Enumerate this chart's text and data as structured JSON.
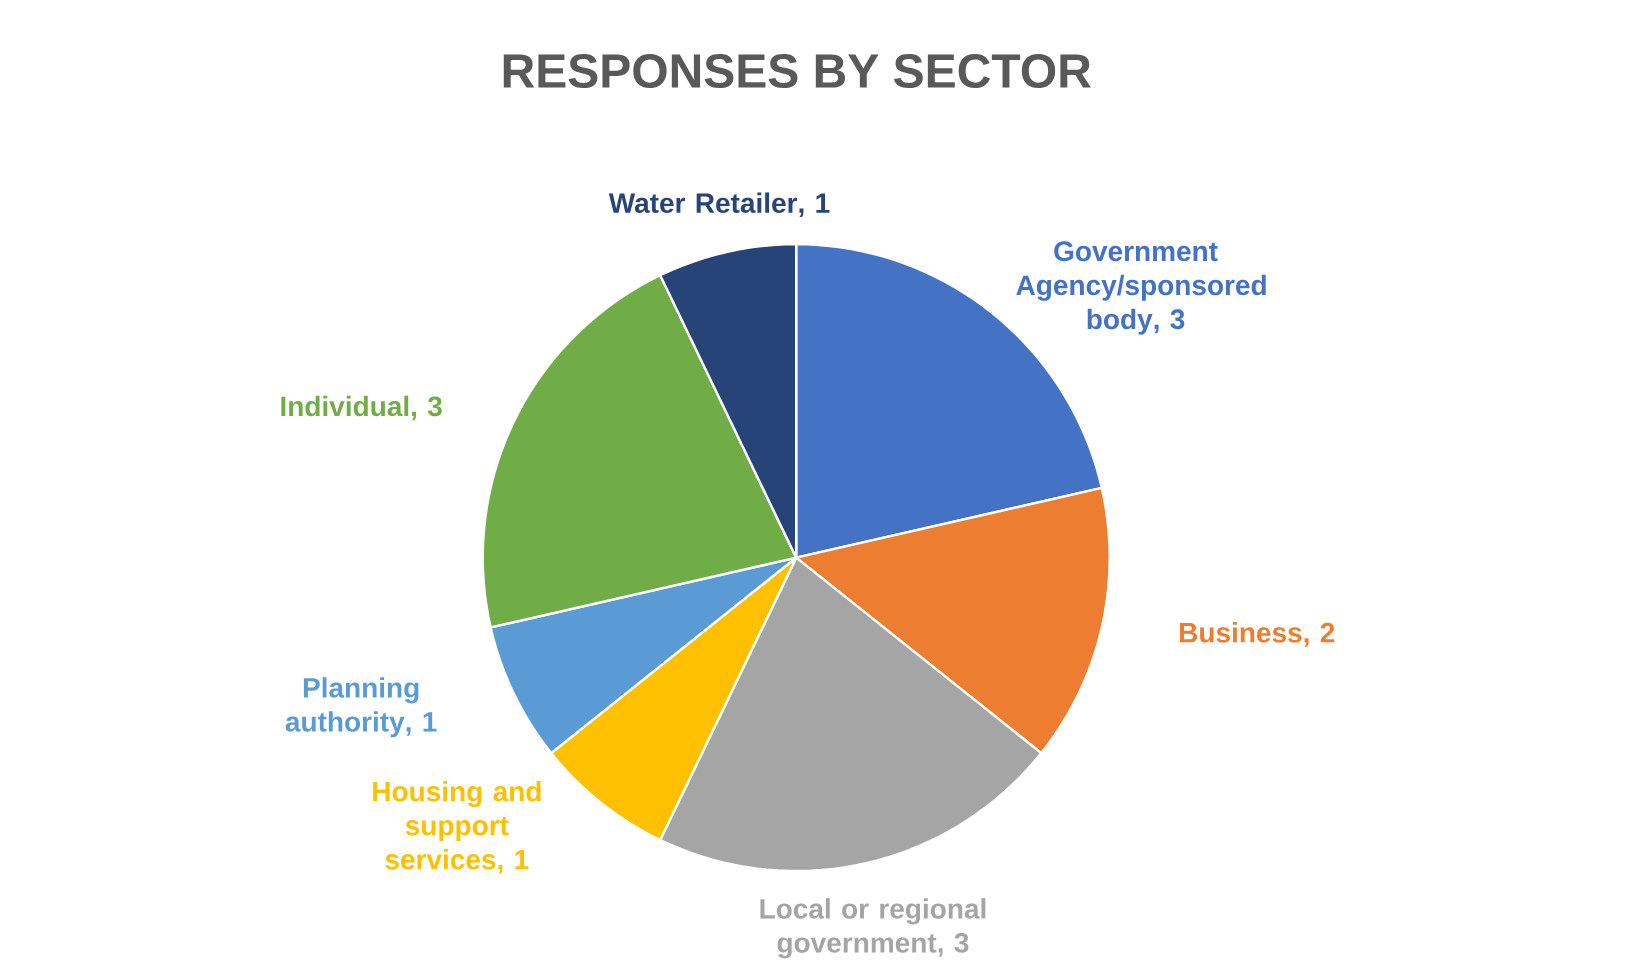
{
  "chart_data": {
    "type": "pie",
    "title": "RESPONSES BY SECTOR",
    "categories": [
      "Government Agency/sponsored body",
      "Business",
      "Local or regional government",
      "Housing and support services",
      "Planning authority",
      "Individual",
      "Water Retailer"
    ],
    "values": [
      3,
      2,
      3,
      1,
      1,
      3,
      1
    ],
    "colors": [
      "#4472c4",
      "#ed7d31",
      "#a5a5a5",
      "#ffc000",
      "#5b9bd5",
      "#70ad47",
      "#264478"
    ],
    "value_labels": [
      ", 3",
      ", 2",
      ", 3",
      ", 1",
      ", 1",
      ", 3",
      ", 1"
    ]
  }
}
